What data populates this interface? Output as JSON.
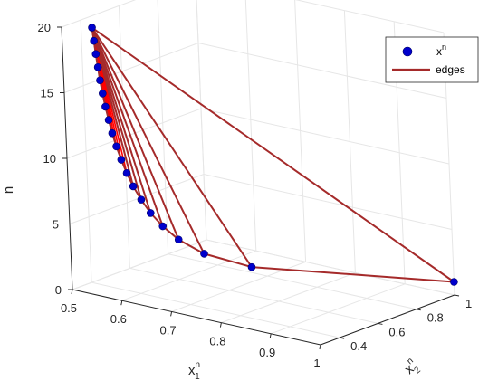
{
  "chart_data": {
    "type": "scatter",
    "projection": "3d",
    "title": "",
    "xlabel": {
      "base": "x",
      "sub": "1",
      "sup": "n"
    },
    "ylabel": {
      "base": "x",
      "sub": "2",
      "sup": "n"
    },
    "zlabel": "n",
    "xlim": [
      0.5,
      1
    ],
    "ylim": [
      0.3,
      1
    ],
    "zlim": [
      0,
      20
    ],
    "xticks": [
      "0.5",
      "0.6",
      "0.7",
      "0.8",
      "0.9",
      "1"
    ],
    "yticks": [
      "0.4",
      "0.6",
      "0.8",
      "1"
    ],
    "zticks": [
      "0",
      "5",
      "10",
      "15",
      "20"
    ],
    "grid": true,
    "legend_position": "top-right",
    "series": [
      {
        "name": "x^n",
        "legend_base": "x",
        "legend_sup": "n",
        "kind": "markers",
        "color": "#0000cc",
        "points": [
          {
            "x": 1.0,
            "y": 1.0,
            "z": 1
          },
          {
            "x": 0.74,
            "y": 0.62,
            "z": 2
          },
          {
            "x": 0.68,
            "y": 0.53,
            "z": 3
          },
          {
            "x": 0.645,
            "y": 0.49,
            "z": 4
          },
          {
            "x": 0.625,
            "y": 0.462,
            "z": 5
          },
          {
            "x": 0.61,
            "y": 0.44,
            "z": 6
          },
          {
            "x": 0.598,
            "y": 0.425,
            "z": 7
          },
          {
            "x": 0.588,
            "y": 0.412,
            "z": 8
          },
          {
            "x": 0.58,
            "y": 0.402,
            "z": 9
          },
          {
            "x": 0.573,
            "y": 0.394,
            "z": 10
          },
          {
            "x": 0.567,
            "y": 0.387,
            "z": 11
          },
          {
            "x": 0.562,
            "y": 0.381,
            "z": 12
          },
          {
            "x": 0.558,
            "y": 0.376,
            "z": 13
          },
          {
            "x": 0.554,
            "y": 0.372,
            "z": 14
          },
          {
            "x": 0.551,
            "y": 0.368,
            "z": 15
          },
          {
            "x": 0.548,
            "y": 0.365,
            "z": 16
          },
          {
            "x": 0.546,
            "y": 0.362,
            "z": 17
          },
          {
            "x": 0.544,
            "y": 0.359,
            "z": 18
          },
          {
            "x": 0.542,
            "y": 0.357,
            "z": 19
          },
          {
            "x": 0.54,
            "y": 0.355,
            "z": 20
          }
        ]
      },
      {
        "name": "edges",
        "legend_base": "edges",
        "kind": "lines",
        "color": "#a52a2a",
        "hub_index": 19,
        "fan_color": "#ff0000"
      }
    ]
  }
}
